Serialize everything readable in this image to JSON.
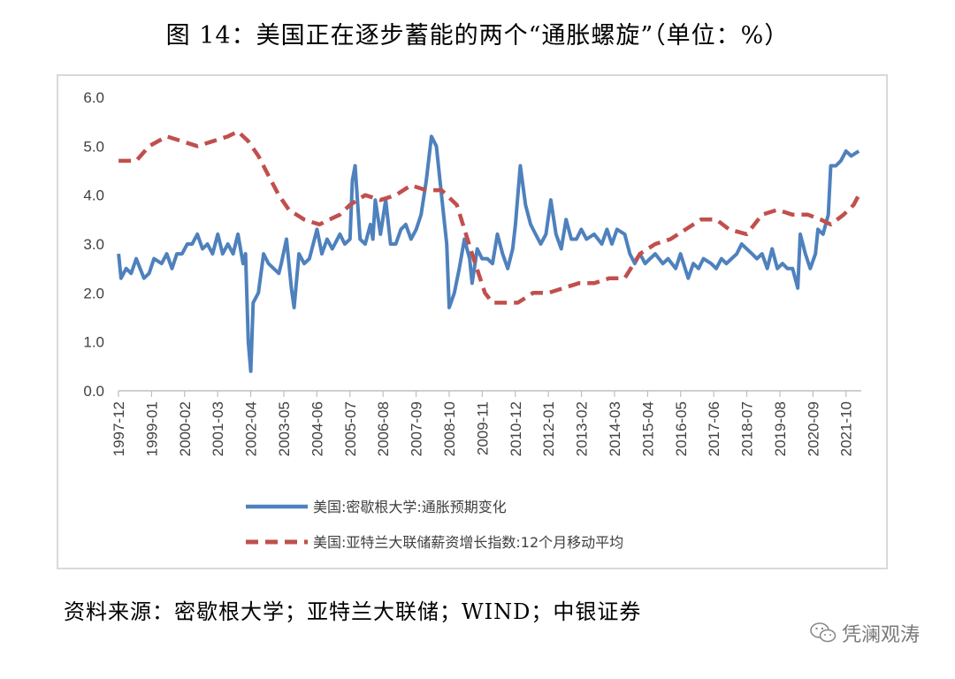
{
  "title": "图 14：美国正在逐步蓄能的两个“通胀螺旋”（单位：%）",
  "source": "资料来源：密歇根大学；亚特兰大联储；WIND；中银证券",
  "watermark": "凭澜观涛",
  "colors": {
    "series1": "#4e81bd",
    "series2": "#c0504d",
    "axis": "#bfbfbf"
  },
  "chart_data": {
    "type": "line",
    "ylim": [
      0,
      6
    ],
    "yticks": [
      "0.0",
      "1.0",
      "2.0",
      "3.0",
      "4.0",
      "5.0",
      "6.0"
    ],
    "xlim": [
      1997.917,
      2022.25
    ],
    "xticks": [
      "1997-12",
      "1999-01",
      "2000-02",
      "2001-03",
      "2002-04",
      "2003-05",
      "2004-06",
      "2005-07",
      "2006-08",
      "2007-09",
      "2008-10",
      "2009-11",
      "2010-12",
      "2012-01",
      "2013-02",
      "2014-03",
      "2015-04",
      "2016-05",
      "2017-06",
      "2018-07",
      "2019-08",
      "2020-09",
      "2021-10"
    ],
    "legend_position": "bottom",
    "grid": "none",
    "series": [
      {
        "name": "美国:密歇根大学:通胀预期变化",
        "style": "solid",
        "points": [
          [
            1997.92,
            2.8
          ],
          [
            1998.0,
            2.3
          ],
          [
            1998.17,
            2.5
          ],
          [
            1998.33,
            2.4
          ],
          [
            1998.5,
            2.7
          ],
          [
            1998.75,
            2.3
          ],
          [
            1998.92,
            2.4
          ],
          [
            1999.08,
            2.7
          ],
          [
            1999.33,
            2.6
          ],
          [
            1999.5,
            2.8
          ],
          [
            1999.67,
            2.5
          ],
          [
            1999.83,
            2.8
          ],
          [
            2000.0,
            2.8
          ],
          [
            2000.17,
            3.0
          ],
          [
            2000.33,
            3.0
          ],
          [
            2000.5,
            3.2
          ],
          [
            2000.67,
            2.9
          ],
          [
            2000.83,
            3.0
          ],
          [
            2001.0,
            2.8
          ],
          [
            2001.17,
            3.2
          ],
          [
            2001.33,
            2.8
          ],
          [
            2001.5,
            3.0
          ],
          [
            2001.67,
            2.8
          ],
          [
            2001.83,
            3.2
          ],
          [
            2002.0,
            2.6
          ],
          [
            2002.08,
            2.8
          ],
          [
            2002.17,
            1.0
          ],
          [
            2002.25,
            0.4
          ],
          [
            2002.33,
            1.8
          ],
          [
            2002.5,
            2.0
          ],
          [
            2002.67,
            2.8
          ],
          [
            2002.83,
            2.6
          ],
          [
            2003.0,
            2.5
          ],
          [
            2003.17,
            2.4
          ],
          [
            2003.25,
            2.6
          ],
          [
            2003.42,
            3.1
          ],
          [
            2003.58,
            2.1
          ],
          [
            2003.67,
            1.7
          ],
          [
            2003.83,
            2.8
          ],
          [
            2004.0,
            2.6
          ],
          [
            2004.17,
            2.7
          ],
          [
            2004.42,
            3.3
          ],
          [
            2004.58,
            2.8
          ],
          [
            2004.75,
            3.1
          ],
          [
            2004.92,
            2.9
          ],
          [
            2005.17,
            3.2
          ],
          [
            2005.33,
            3.0
          ],
          [
            2005.5,
            3.1
          ],
          [
            2005.58,
            4.3
          ],
          [
            2005.67,
            4.6
          ],
          [
            2005.83,
            3.1
          ],
          [
            2006.0,
            3.0
          ],
          [
            2006.17,
            3.4
          ],
          [
            2006.25,
            3.1
          ],
          [
            2006.33,
            3.9
          ],
          [
            2006.5,
            3.2
          ],
          [
            2006.67,
            3.9
          ],
          [
            2006.83,
            3.0
          ],
          [
            2007.0,
            3.0
          ],
          [
            2007.17,
            3.3
          ],
          [
            2007.33,
            3.4
          ],
          [
            2007.5,
            3.1
          ],
          [
            2007.67,
            3.3
          ],
          [
            2007.83,
            3.6
          ],
          [
            2008.0,
            4.3
          ],
          [
            2008.17,
            5.2
          ],
          [
            2008.33,
            5.0
          ],
          [
            2008.5,
            4.0
          ],
          [
            2008.67,
            3.0
          ],
          [
            2008.75,
            1.7
          ],
          [
            2008.92,
            2.0
          ],
          [
            2009.08,
            2.5
          ],
          [
            2009.25,
            3.1
          ],
          [
            2009.42,
            2.7
          ],
          [
            2009.5,
            2.2
          ],
          [
            2009.67,
            2.9
          ],
          [
            2009.83,
            2.7
          ],
          [
            2010.0,
            2.7
          ],
          [
            2010.17,
            2.6
          ],
          [
            2010.33,
            3.2
          ],
          [
            2010.5,
            2.8
          ],
          [
            2010.67,
            2.5
          ],
          [
            2010.83,
            2.9
          ],
          [
            2010.92,
            3.4
          ],
          [
            2011.08,
            4.6
          ],
          [
            2011.25,
            3.8
          ],
          [
            2011.42,
            3.4
          ],
          [
            2011.58,
            3.2
          ],
          [
            2011.75,
            3.0
          ],
          [
            2011.92,
            3.2
          ],
          [
            2012.08,
            3.9
          ],
          [
            2012.25,
            3.2
          ],
          [
            2012.42,
            2.9
          ],
          [
            2012.58,
            3.5
          ],
          [
            2012.75,
            3.1
          ],
          [
            2012.92,
            3.1
          ],
          [
            2013.08,
            3.3
          ],
          [
            2013.25,
            3.1
          ],
          [
            2013.5,
            3.2
          ],
          [
            2013.75,
            3.0
          ],
          [
            2013.92,
            3.3
          ],
          [
            2014.08,
            3.0
          ],
          [
            2014.25,
            3.3
          ],
          [
            2014.5,
            3.2
          ],
          [
            2014.67,
            2.8
          ],
          [
            2014.83,
            2.6
          ],
          [
            2015.0,
            2.8
          ],
          [
            2015.17,
            2.6
          ],
          [
            2015.33,
            2.7
          ],
          [
            2015.5,
            2.8
          ],
          [
            2015.75,
            2.6
          ],
          [
            2015.92,
            2.7
          ],
          [
            2016.17,
            2.5
          ],
          [
            2016.33,
            2.8
          ],
          [
            2016.58,
            2.3
          ],
          [
            2016.75,
            2.6
          ],
          [
            2016.92,
            2.5
          ],
          [
            2017.08,
            2.7
          ],
          [
            2017.33,
            2.6
          ],
          [
            2017.5,
            2.5
          ],
          [
            2017.67,
            2.7
          ],
          [
            2017.83,
            2.6
          ],
          [
            2018.0,
            2.7
          ],
          [
            2018.17,
            2.8
          ],
          [
            2018.33,
            3.0
          ],
          [
            2018.5,
            2.9
          ],
          [
            2018.67,
            2.8
          ],
          [
            2018.83,
            2.7
          ],
          [
            2019.0,
            2.8
          ],
          [
            2019.17,
            2.5
          ],
          [
            2019.33,
            2.9
          ],
          [
            2019.5,
            2.5
          ],
          [
            2019.67,
            2.6
          ],
          [
            2019.83,
            2.5
          ],
          [
            2020.0,
            2.5
          ],
          [
            2020.17,
            2.1
          ],
          [
            2020.25,
            3.2
          ],
          [
            2020.42,
            2.8
          ],
          [
            2020.58,
            2.5
          ],
          [
            2020.75,
            2.8
          ],
          [
            2020.83,
            3.3
          ],
          [
            2021.0,
            3.2
          ],
          [
            2021.17,
            3.6
          ],
          [
            2021.25,
            4.6
          ],
          [
            2021.42,
            4.6
          ],
          [
            2021.58,
            4.7
          ],
          [
            2021.75,
            4.9
          ],
          [
            2021.92,
            4.8
          ],
          [
            2022.17,
            4.9
          ]
        ]
      },
      {
        "name": "美国:亚特兰大联储薪资增长指数:12个月移动平均",
        "style": "dashed",
        "points": [
          [
            1997.92,
            4.7
          ],
          [
            1998.5,
            4.7
          ],
          [
            1998.92,
            5.0
          ],
          [
            1999.5,
            5.2
          ],
          [
            2000.0,
            5.1
          ],
          [
            2000.5,
            5.0
          ],
          [
            2001.0,
            5.1
          ],
          [
            2001.5,
            5.2
          ],
          [
            2001.83,
            5.3
          ],
          [
            2002.17,
            5.1
          ],
          [
            2002.5,
            4.8
          ],
          [
            2002.83,
            4.4
          ],
          [
            2003.17,
            4.0
          ],
          [
            2003.5,
            3.7
          ],
          [
            2004.0,
            3.5
          ],
          [
            2004.5,
            3.4
          ],
          [
            2004.83,
            3.5
          ],
          [
            2005.17,
            3.6
          ],
          [
            2005.5,
            3.8
          ],
          [
            2006.0,
            4.0
          ],
          [
            2006.5,
            3.9
          ],
          [
            2007.0,
            4.0
          ],
          [
            2007.5,
            4.2
          ],
          [
            2008.0,
            4.1
          ],
          [
            2008.5,
            4.1
          ],
          [
            2009.0,
            3.8
          ],
          [
            2009.5,
            2.8
          ],
          [
            2009.92,
            2.0
          ],
          [
            2010.17,
            1.8
          ],
          [
            2010.5,
            1.8
          ],
          [
            2011.0,
            1.8
          ],
          [
            2011.5,
            2.0
          ],
          [
            2012.0,
            2.0
          ],
          [
            2012.5,
            2.1
          ],
          [
            2013.0,
            2.2
          ],
          [
            2013.5,
            2.2
          ],
          [
            2014.0,
            2.3
          ],
          [
            2014.5,
            2.3
          ],
          [
            2015.0,
            2.8
          ],
          [
            2015.5,
            3.0
          ],
          [
            2016.0,
            3.1
          ],
          [
            2016.5,
            3.3
          ],
          [
            2017.0,
            3.5
          ],
          [
            2017.5,
            3.5
          ],
          [
            2017.92,
            3.3
          ],
          [
            2018.5,
            3.2
          ],
          [
            2019.0,
            3.6
          ],
          [
            2019.5,
            3.7
          ],
          [
            2020.0,
            3.6
          ],
          [
            2020.5,
            3.6
          ],
          [
            2020.92,
            3.5
          ],
          [
            2021.25,
            3.4
          ],
          [
            2021.67,
            3.6
          ],
          [
            2022.0,
            3.8
          ],
          [
            2022.17,
            4.0
          ]
        ]
      }
    ]
  }
}
